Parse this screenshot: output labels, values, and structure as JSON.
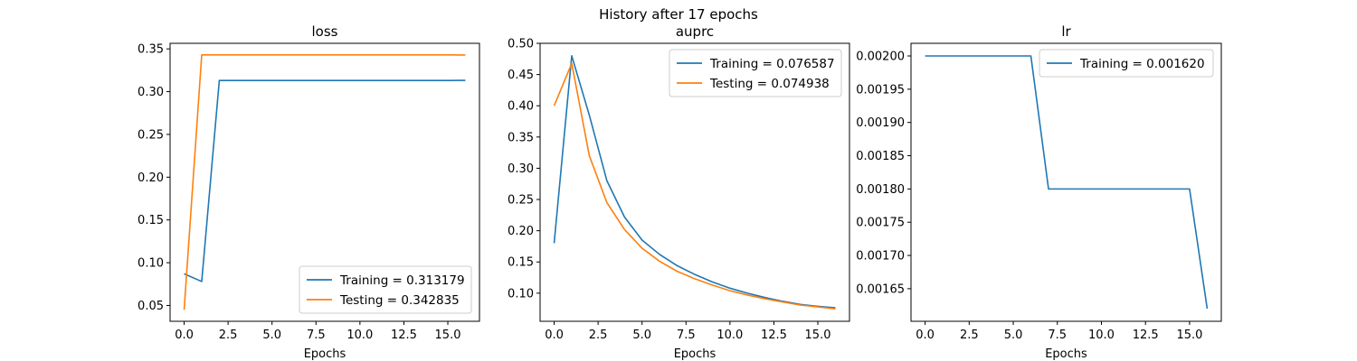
{
  "suptitle": "History after 17 epochs",
  "colors": {
    "training": "#1f77b4",
    "testing": "#ff7f0e"
  },
  "chart_data": [
    {
      "type": "line",
      "title": "loss",
      "xlabel": "Epochs",
      "ylabel": "",
      "xlim": [
        -0.8,
        16.8
      ],
      "ylim": [
        0.0315,
        0.3565
      ],
      "xticks": [
        0,
        2.5,
        5,
        7.5,
        10,
        12.5,
        15
      ],
      "xtick_labels": [
        "0.0",
        "2.5",
        "5.0",
        "7.5",
        "10.0",
        "12.5",
        "15.0"
      ],
      "yticks": [
        0.05,
        0.1,
        0.15,
        0.2,
        0.25,
        0.3,
        0.35
      ],
      "ytick_labels": [
        "0.05",
        "0.10",
        "0.15",
        "0.20",
        "0.25",
        "0.30",
        "0.35"
      ],
      "legend_position": "bottom-right",
      "grid": false,
      "series": [
        {
          "name": "Training = 0.313179",
          "color": "#1f77b4",
          "x": [
            0,
            1,
            2,
            3,
            4,
            5,
            6,
            7,
            8,
            9,
            10,
            11,
            12,
            13,
            14,
            15,
            16
          ],
          "y": [
            0.087,
            0.078,
            0.313,
            0.313,
            0.313,
            0.313,
            0.313,
            0.313,
            0.313,
            0.313,
            0.313,
            0.313,
            0.313,
            0.313,
            0.313,
            0.313,
            0.313179
          ]
        },
        {
          "name": "Testing = 0.342835",
          "color": "#ff7f0e",
          "x": [
            0,
            1,
            2,
            3,
            4,
            5,
            6,
            7,
            8,
            9,
            10,
            11,
            12,
            13,
            14,
            15,
            16
          ],
          "y": [
            0.045,
            0.343,
            0.343,
            0.343,
            0.343,
            0.343,
            0.343,
            0.343,
            0.343,
            0.343,
            0.343,
            0.343,
            0.343,
            0.343,
            0.343,
            0.343,
            0.342835
          ]
        }
      ]
    },
    {
      "type": "line",
      "title": "auprc",
      "xlabel": "Epochs",
      "ylabel": "",
      "xlim": [
        -0.8,
        16.8
      ],
      "ylim": [
        0.055,
        0.5
      ],
      "xticks": [
        0,
        2.5,
        5,
        7.5,
        10,
        12.5,
        15
      ],
      "xtick_labels": [
        "0.0",
        "2.5",
        "5.0",
        "7.5",
        "10.0",
        "12.5",
        "15.0"
      ],
      "yticks": [
        0.1,
        0.15,
        0.2,
        0.25,
        0.3,
        0.35,
        0.4,
        0.45,
        0.5
      ],
      "ytick_labels": [
        "0.10",
        "0.15",
        "0.20",
        "0.25",
        "0.30",
        "0.35",
        "0.40",
        "0.45",
        "0.50"
      ],
      "legend_position": "top-right",
      "grid": false,
      "series": [
        {
          "name": "Training = 0.076587",
          "color": "#1f77b4",
          "x": [
            0,
            1,
            2,
            3,
            4,
            5,
            6,
            7,
            8,
            9,
            10,
            11,
            12,
            13,
            14,
            15,
            16
          ],
          "y": [
            0.18,
            0.48,
            0.385,
            0.28,
            0.222,
            0.185,
            0.162,
            0.144,
            0.13,
            0.118,
            0.108,
            0.1,
            0.093,
            0.087,
            0.082,
            0.079,
            0.076587
          ]
        },
        {
          "name": "Testing = 0.074938",
          "color": "#ff7f0e",
          "x": [
            0,
            1,
            2,
            3,
            4,
            5,
            6,
            7,
            8,
            9,
            10,
            11,
            12,
            13,
            14,
            15,
            16
          ],
          "y": [
            0.4,
            0.468,
            0.32,
            0.245,
            0.202,
            0.172,
            0.151,
            0.135,
            0.123,
            0.113,
            0.104,
            0.097,
            0.091,
            0.086,
            0.081,
            0.078,
            0.074938
          ]
        }
      ]
    },
    {
      "type": "line",
      "title": "lr",
      "xlabel": "Epochs",
      "ylabel": "",
      "xlim": [
        -0.8,
        16.8
      ],
      "ylim": [
        0.001601,
        0.002019
      ],
      "xticks": [
        0,
        2.5,
        5,
        7.5,
        10,
        12.5,
        15
      ],
      "xtick_labels": [
        "0.0",
        "2.5",
        "5.0",
        "7.5",
        "10.0",
        "12.5",
        "15.0"
      ],
      "yticks": [
        0.00165,
        0.0017,
        0.00175,
        0.0018,
        0.00185,
        0.0019,
        0.00195,
        0.002
      ],
      "ytick_labels": [
        "0.00165",
        "0.00170",
        "0.00175",
        "0.00180",
        "0.00185",
        "0.00190",
        "0.00195",
        "0.00200"
      ],
      "legend_position": "top-right",
      "grid": false,
      "series": [
        {
          "name": "Training = 0.001620",
          "color": "#1f77b4",
          "x": [
            0,
            1,
            2,
            3,
            4,
            5,
            6,
            7,
            8,
            9,
            10,
            11,
            12,
            13,
            14,
            15,
            16
          ],
          "y": [
            0.002,
            0.002,
            0.002,
            0.002,
            0.002,
            0.002,
            0.002,
            0.0018,
            0.0018,
            0.0018,
            0.0018,
            0.0018,
            0.0018,
            0.0018,
            0.0018,
            0.0018,
            0.00162
          ]
        }
      ]
    }
  ]
}
